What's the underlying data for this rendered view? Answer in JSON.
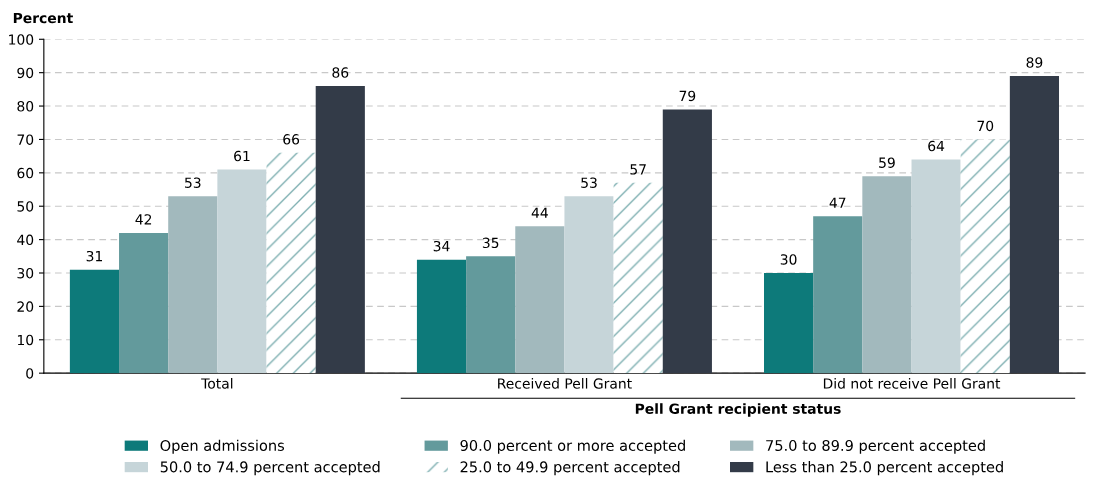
{
  "chart_data": {
    "type": "bar",
    "ylabel": "Percent",
    "xlabel": "Pell Grant recipient status",
    "categories": [
      "Total",
      "Received Pell Grant",
      "Did not receive Pell Grant"
    ],
    "series": [
      {
        "name": "Open admissions",
        "color": "#0d7a7a",
        "values": [
          31,
          34,
          30
        ]
      },
      {
        "name": "90.0 percent or more accepted",
        "color": "#639a9c",
        "values": [
          42,
          35,
          47
        ]
      },
      {
        "name": "75.0 to 89.9 percent accepted",
        "color": "#a2b9bd",
        "values": [
          53,
          44,
          59
        ]
      },
      {
        "name": "50.0 to 74.9 percent accepted",
        "color": "#c6d5d9",
        "values": [
          61,
          53,
          64
        ]
      },
      {
        "name": "25.0 to 49.9 percent accepted",
        "color": "#ffffff",
        "values": [
          66,
          57,
          70
        ]
      },
      {
        "name": "Less than 25.0 percent accepted",
        "color": "#333b48",
        "values": [
          86,
          79,
          89
        ]
      }
    ],
    "ylim": [
      0,
      100
    ],
    "yticks": [
      0,
      10,
      20,
      30,
      40,
      50,
      60,
      70,
      80,
      90,
      100
    ],
    "grid": "y",
    "legend": "bottom",
    "data_labels": true
  }
}
